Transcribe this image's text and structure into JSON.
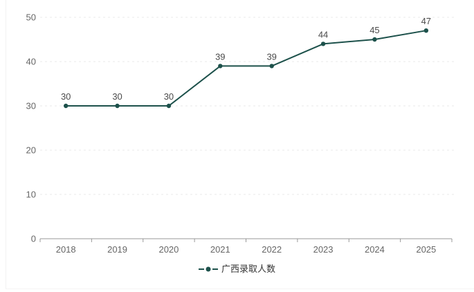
{
  "chart_data": {
    "type": "line",
    "title": "",
    "xlabel": "",
    "ylabel": "",
    "categories": [
      "2018",
      "2019",
      "2020",
      "2021",
      "2022",
      "2023",
      "2024",
      "2025"
    ],
    "series": [
      {
        "name": "广西录取人数",
        "values": [
          30,
          30,
          30,
          39,
          39,
          44,
          45,
          47
        ],
        "color": "#1d514b",
        "marker": "circle",
        "line_width": 2,
        "show_data_labels": true
      }
    ],
    "ylim": [
      0,
      50
    ],
    "y_ticks": [
      0,
      10,
      20,
      30,
      40,
      50
    ],
    "grid": {
      "horizontal": true,
      "style": "dashed",
      "color": "#e8e8e8"
    },
    "legend": {
      "position": "bottom-center",
      "items": [
        "广西录取人数"
      ]
    },
    "axis_color": "#999999",
    "tick_label_color": "#666666",
    "data_label_color": "#4a4a4a",
    "legend_text_color": "#333333",
    "background_color": "#ffffff"
  }
}
